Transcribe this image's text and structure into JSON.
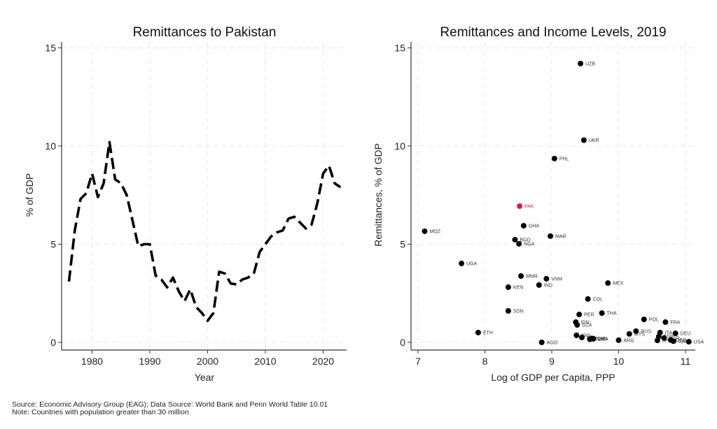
{
  "chart_data": [
    {
      "type": "line",
      "title": "Remittances to Pakistan",
      "xlabel": "Year",
      "ylabel": "% of GDP",
      "xlim": [
        1975,
        2024
      ],
      "ylim": [
        0,
        15
      ],
      "xticks": [
        1980,
        1990,
        2000,
        2010,
        2020
      ],
      "yticks": [
        0,
        5,
        10,
        15
      ],
      "grid": true,
      "line_style": "dashed",
      "series": [
        {
          "name": "Pakistan",
          "x": [
            1976,
            1977,
            1978,
            1979,
            1980,
            1981,
            1982,
            1983,
            1984,
            1985,
            1986,
            1987,
            1988,
            1989,
            1990,
            1991,
            1992,
            1993,
            1994,
            1995,
            1996,
            1997,
            1998,
            1999,
            2000,
            2001,
            2002,
            2003,
            2004,
            2005,
            2006,
            2007,
            2008,
            2009,
            2010,
            2011,
            2012,
            2013,
            2014,
            2015,
            2016,
            2017,
            2018,
            2019,
            2020,
            2021,
            2022,
            2023
          ],
          "values": [
            3.1,
            5.7,
            7.3,
            7.6,
            8.6,
            7.4,
            8.1,
            10.2,
            8.3,
            8.1,
            7.5,
            6.2,
            4.9,
            5.0,
            5.0,
            3.4,
            3.2,
            2.8,
            3.3,
            2.6,
            2.1,
            2.7,
            1.8,
            1.5,
            1.1,
            1.5,
            3.6,
            3.5,
            3.0,
            2.95,
            3.2,
            3.3,
            3.5,
            4.6,
            5.0,
            5.4,
            5.6,
            5.7,
            6.3,
            6.4,
            6.1,
            5.8,
            6.0,
            7.1,
            8.6,
            9.0,
            8.1,
            7.9
          ]
        }
      ]
    },
    {
      "type": "scatter",
      "title": "Remittances and Income Levels, 2019",
      "xlabel": "Log of GDP per Capita, PPP",
      "ylabel": "Remittances, % of GDP",
      "xlim": [
        6.9,
        11.15
      ],
      "ylim": [
        0,
        15
      ],
      "xticks": [
        7,
        8,
        9,
        10,
        11
      ],
      "yticks": [
        0,
        5,
        10,
        15
      ],
      "grid": true,
      "highlight_color": "#d6195a",
      "point_color": "#000000",
      "points": [
        {
          "label": "UZB",
          "x": 9.43,
          "y": 14.2
        },
        {
          "label": "UKR",
          "x": 9.48,
          "y": 10.3
        },
        {
          "label": "PHL",
          "x": 9.04,
          "y": 9.36
        },
        {
          "label": "PAK",
          "x": 8.52,
          "y": 6.94,
          "highlight": true
        },
        {
          "label": "GHA",
          "x": 8.58,
          "y": 5.94
        },
        {
          "label": "MOZ",
          "x": 7.1,
          "y": 5.66
        },
        {
          "label": "MAR",
          "x": 8.98,
          "y": 5.41
        },
        {
          "label": "BGD",
          "x": 8.45,
          "y": 5.23
        },
        {
          "label": "NGA",
          "x": 8.51,
          "y": 5.02
        },
        {
          "label": "UGA",
          "x": 7.65,
          "y": 4.02
        },
        {
          "label": "MMR",
          "x": 8.54,
          "y": 3.38
        },
        {
          "label": "VNM",
          "x": 8.92,
          "y": 3.24
        },
        {
          "label": "MEX",
          "x": 9.84,
          "y": 3.02
        },
        {
          "label": "IND",
          "x": 8.81,
          "y": 2.92
        },
        {
          "label": "KEN",
          "x": 8.35,
          "y": 2.81
        },
        {
          "label": "COL",
          "x": 9.54,
          "y": 2.21
        },
        {
          "label": "SDN",
          "x": 8.35,
          "y": 1.6
        },
        {
          "label": "THA",
          "x": 9.75,
          "y": 1.49
        },
        {
          "label": "PER",
          "x": 9.41,
          "y": 1.42
        },
        {
          "label": "POL",
          "x": 10.38,
          "y": 1.17
        },
        {
          "label": "IDN",
          "x": 9.36,
          "y": 1.03
        },
        {
          "label": "FRA",
          "x": 10.7,
          "y": 1.03
        },
        {
          "label": "DZA",
          "x": 9.38,
          "y": 0.89
        },
        {
          "label": "RUS",
          "x": 10.26,
          "y": 0.57
        },
        {
          "label": "ETH",
          "x": 7.9,
          "y": 0.5
        },
        {
          "label": "ITA",
          "x": 10.62,
          "y": 0.5
        },
        {
          "label": "DEU",
          "x": 10.85,
          "y": 0.46
        },
        {
          "label": "MYS",
          "x": 10.16,
          "y": 0.43
        },
        {
          "label": "IRQ",
          "x": 9.37,
          "y": 0.36
        },
        {
          "label": "EGY",
          "x": 9.45,
          "y": 0.25
        },
        {
          "label": "TUR",
          "x": 9.57,
          "y": 0.16
        },
        {
          "label": "CHN",
          "x": 9.6,
          "y": 0.2
        },
        {
          "label": "BRA",
          "x": 9.62,
          "y": 0.18
        },
        {
          "label": "ARG",
          "x": 10.0,
          "y": 0.11
        },
        {
          "label": "ESP",
          "x": 10.6,
          "y": 0.3
        },
        {
          "label": "KOR",
          "x": 10.68,
          "y": 0.22
        },
        {
          "label": "JPN",
          "x": 10.58,
          "y": 0.1
        },
        {
          "label": "GBR",
          "x": 10.78,
          "y": 0.12
        },
        {
          "label": "CAN",
          "x": 10.82,
          "y": 0.06
        },
        {
          "label": "USA",
          "x": 11.05,
          "y": 0.03
        },
        {
          "label": "AGO",
          "x": 8.85,
          "y": 0.0
        }
      ]
    }
  ],
  "notes": {
    "source": "Source: Economic Advisory Group (EAG); Data Source: World Bank and Penn World Table 10.01",
    "note": "Note: Countries with population greater than 30 million"
  }
}
